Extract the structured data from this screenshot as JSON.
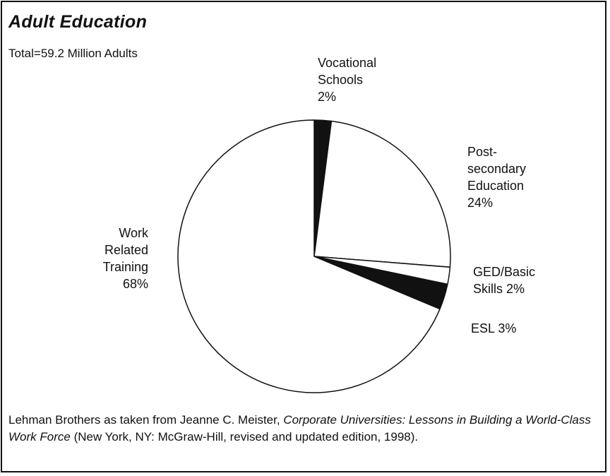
{
  "chart_data": {
    "type": "pie",
    "title": "Adult Education",
    "subtitle": "Total=59.2 Million Adults",
    "slices": [
      {
        "label": "Vocational\nSchools\n2%",
        "value": 2,
        "color": "#111111"
      },
      {
        "label": "Post-\nsecondary\nEducation\n24%",
        "value": 24,
        "color": "#ffffff"
      },
      {
        "label": "GED/Basic\nSkills 2%",
        "value": 2,
        "color": "#ffffff"
      },
      {
        "label": "ESL 3%",
        "value": 3,
        "color": "#111111"
      },
      {
        "label": "Work\nRelated\nTraining\n68%",
        "value": 68,
        "color": "#ffffff"
      }
    ]
  },
  "source": {
    "prefix": "Lehman Brothers as taken from Jeanne C. Meister, ",
    "book": "Corporate Universities: Lessons in Building a World-Class Work Force",
    "suffix": " (New York, NY: McGraw-Hill, revised and updated edition, 1998)."
  }
}
